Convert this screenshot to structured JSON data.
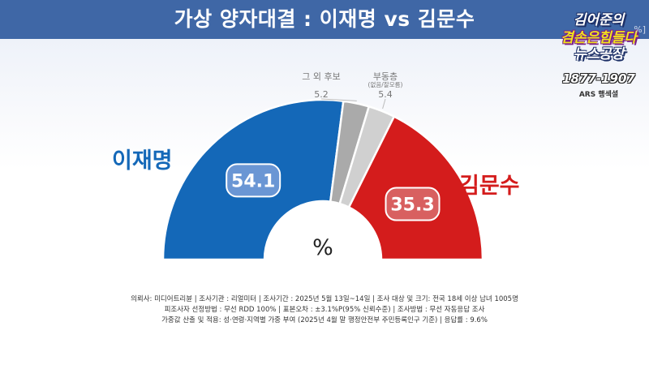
{
  "header": {
    "title": "가상 양자대결 : 이재명 vs 김문수"
  },
  "logo": {
    "line1": "김어준의",
    "line2": "겸손은힘들다",
    "line3": "뉴스공장",
    "phone": "1877-1907",
    "ars": "ARS 행섹셜",
    "pct_tag": "%]"
  },
  "colors": {
    "header": "#3f67a6",
    "lee": "#1468b8",
    "kim": "#d41c1c",
    "others": "#aaaaaa",
    "undecided": "#d0d0d0"
  },
  "chart_data": {
    "type": "pie",
    "style": "semicircle-donut",
    "unit_label": "%",
    "series": [
      {
        "name": "이재명",
        "value": 54.1,
        "label": "54.1"
      },
      {
        "name": "그 외 후보",
        "value": 5.2,
        "label": "5.2"
      },
      {
        "name": "부동층",
        "note": "(없음/잘모름)",
        "value": 5.4,
        "label": "5.4"
      },
      {
        "name": "김문수",
        "value": 35.3,
        "label": "35.3"
      }
    ]
  },
  "footer": {
    "line1": "의뢰사: 미디어트리뷴 | 조사기관 : 리얼미터  | 조사기간 : 2025년 5월 13일~14일 | 조사 대상 및 크기: 전국 18세 이상 남녀 1005명",
    "line2": "피조사자 선정방법 : 무선 RDD 100% | 표본오차 : ±3.1%P(95% 신뢰수준) | 조사방법 : 무선 자동응답 조사",
    "line3": "가중값 산출 및 적용: 성·연령·지역별 가중 부여 (2025년 4월 말 행정안전부 주민등록인구  기준) | 응답률 : 9.6%"
  }
}
